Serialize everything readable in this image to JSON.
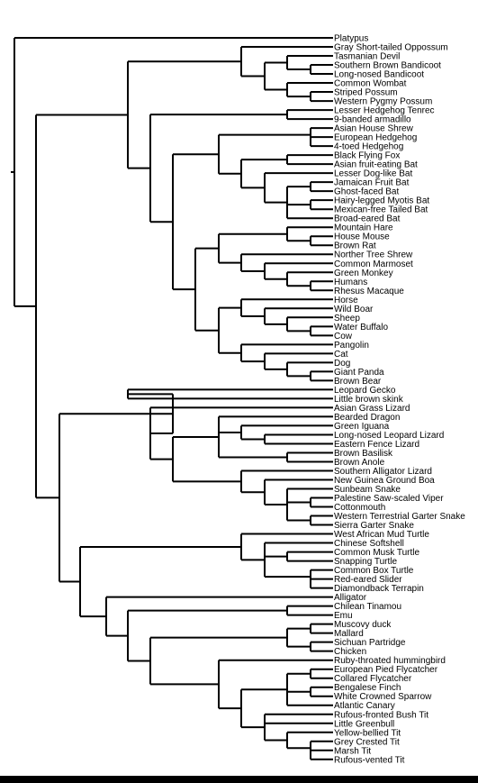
{
  "tree": {
    "leaves": [
      "Platypus",
      "Gray Short-tailed Oppossum",
      "Tasmanian Devil",
      "Southern Brown Bandicoot",
      "Long-nosed Bandicoot",
      "Common Wombat",
      "Striped Possum",
      "Western Pygmy Possum",
      "Lesser Hedgehog Tenrec",
      "9-banded armadillo",
      "Asian House Shrew",
      "European Hedgehog",
      "4-toed Hedgehog",
      "Black Flying Fox",
      "Asian fruit-eating Bat",
      "Lesser Dog-like Bat",
      "Jamaican Fruit Bat",
      "Ghost-faced Bat",
      "Hairy-legged Myotis Bat",
      "Mexican-free Tailed Bat",
      "Broad-eared Bat",
      "Mountain Hare",
      "House Mouse",
      "Brown Rat",
      "Norther Tree Shrew",
      "Common Marmoset",
      "Green Monkey",
      "Humans",
      "Rhesus Macaque",
      "Horse",
      "Wild Boar",
      "Sheep",
      "Water Buffalo",
      "Cow",
      "Pangolin",
      "Cat",
      "Dog",
      "Giant Panda",
      "Brown Bear",
      "Leopard Gecko",
      "Little brown skink",
      "Asian Grass Lizard",
      "Bearded Dragon",
      "Green Iguana",
      "Long-nosed Leopard Lizard",
      "Eastern Fence Lizard",
      "Brown Basilisk",
      "Brown Anole",
      "Southern Alligator Lizard",
      "New Guinea Ground Boa",
      "Sunbeam Snake",
      "Palestine Saw-scaled Viper",
      "Cottonmouth",
      "Western Terrestrial Garter Snake",
      "Sierra Garter Snake",
      "West African Mud Turtle",
      "Chinese Softshell",
      "Common Musk Turtle",
      "Snapping Turtle",
      "Common Box Turtle",
      "Red-eared Slider",
      "Diamondback Terrapin",
      "Alligator",
      "Chilean Tinamou",
      "Emu",
      "Muscovy duck",
      "Mallard",
      "Sichuan Partridge",
      "Chicken",
      "Ruby-throated hummingbird",
      "European Pied Flycatcher",
      "Collared Flycatcher",
      "Bengalese Finch",
      "White Crowned Sparrow",
      "Atlantic Canary",
      "Rufous-fronted Bush Tit",
      "Little Greenbull",
      "Yellow-bellied Tit",
      "Grey Crested Tit",
      "Marsh Tit",
      "Rufous-vented Tit"
    ]
  }
}
